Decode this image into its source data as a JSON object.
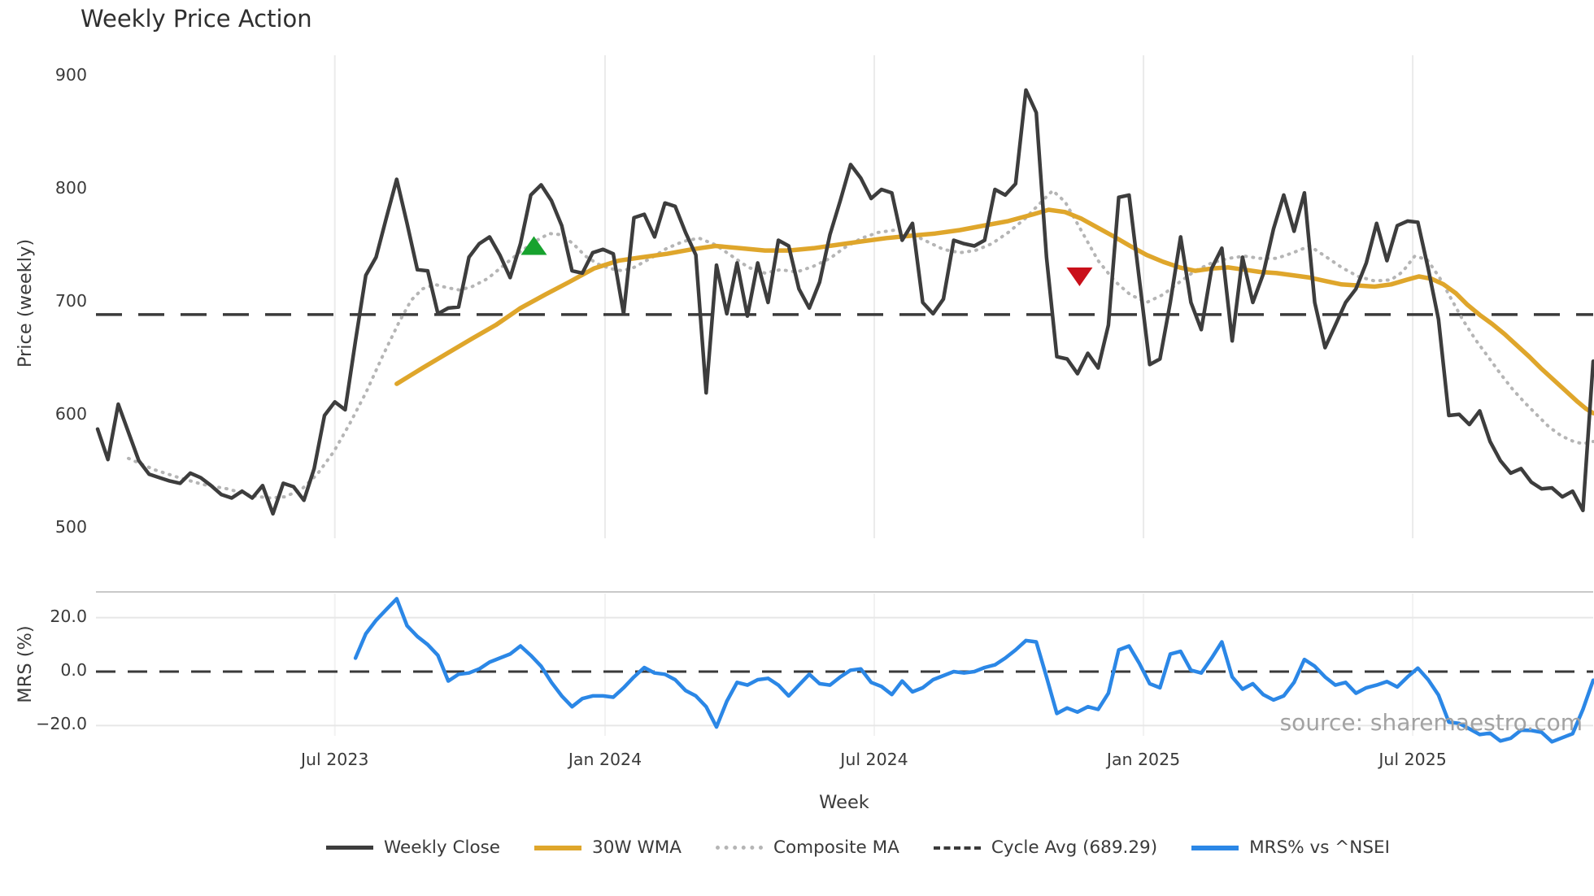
{
  "title": "Weekly Price Action",
  "watermark": "source: sharemaestro.com",
  "xlabel": "Week",
  "main_axis": {
    "ylabel": "Price (weekly)",
    "yticks": [
      {
        "label": "900",
        "value": 900
      },
      {
        "label": "800",
        "value": 800
      },
      {
        "label": "700",
        "value": 700
      },
      {
        "label": "600",
        "value": 600
      },
      {
        "label": "500",
        "value": 500
      }
    ]
  },
  "mrs_axis": {
    "ylabel": "MRS (%)",
    "yticks": [
      {
        "label": "20.0",
        "value": 20
      },
      {
        "label": "0.0",
        "value": 0
      },
      {
        "label": "−20.0",
        "value": -20
      }
    ]
  },
  "xticks": [
    {
      "label": "Jul 2023",
      "week": 23.0
    },
    {
      "label": "Jan 2024",
      "week": 49.2
    },
    {
      "label": "Jul 2024",
      "week": 75.3
    },
    {
      "label": "Jan 2025",
      "week": 101.4
    },
    {
      "label": "Jul 2025",
      "week": 127.5
    }
  ],
  "legend": {
    "items": [
      {
        "label": "Weekly Close",
        "style": "solid",
        "color": "#3d3d3d"
      },
      {
        "label": "30W WMA",
        "style": "solid",
        "color": "#dfa62b"
      },
      {
        "label": "Composite MA",
        "style": "dotted",
        "color": "#b5b5b5"
      },
      {
        "label": "Cycle Avg (689.29)",
        "style": "dashed",
        "color": "#3a3a3a"
      },
      {
        "label": "MRS% vs ^NSEI",
        "style": "solid",
        "color": "#2b87e6"
      }
    ]
  },
  "colors": {
    "weekly_close": "#3d3d3d",
    "wma": "#dfa62b",
    "composite": "#b5b5b5",
    "cycle_avg": "#3a3a3a",
    "mrs": "#2b87e6",
    "buy_marker": "#17a22e",
    "sell_marker": "#c9101a",
    "gridline": "#ebebeb",
    "panel_border": "#c9c9c9",
    "mrs_gridline": "#e7e7e7"
  },
  "chart_data": [
    {
      "type": "line",
      "panel": "price",
      "title": "Weekly Price Action",
      "xlabel": "Week",
      "ylabel": "Price (weekly)",
      "ylim": [
        465,
        920
      ],
      "yticks": [
        500,
        600,
        700,
        800,
        900
      ],
      "x_unit": "week_index",
      "x_tick_weeks": [
        23.0,
        49.2,
        75.3,
        101.4,
        127.5
      ],
      "x_tick_labels": [
        "Jul 2023",
        "Jan 2024",
        "Jul 2024",
        "Jan 2025",
        "Jul 2025"
      ],
      "cycle_avg": 689.29,
      "series": [
        {
          "name": "Weekly Close",
          "style": "solid",
          "start_week": 0,
          "values": [
            588,
            561,
            610,
            585,
            560,
            548,
            545,
            542,
            540,
            549,
            545,
            538,
            530,
            527,
            533,
            527,
            538,
            513,
            540,
            537,
            525,
            553,
            600,
            612,
            605,
            666,
            724,
            740,
            775,
            809,
            770,
            729,
            728,
            690,
            695,
            696,
            740,
            752,
            758,
            742,
            722,
            752,
            795,
            804,
            790,
            768,
            728,
            726,
            744,
            747,
            743,
            690,
            775,
            778,
            758,
            788,
            785,
            762,
            742,
            620,
            733,
            690,
            735,
            688,
            735,
            700,
            755,
            750,
            712,
            695,
            718,
            760,
            790,
            822,
            810,
            792,
            800,
            797,
            755,
            770,
            700,
            690,
            703,
            755,
            752,
            750,
            755,
            800,
            795,
            805,
            888,
            868,
            740,
            652,
            650,
            637,
            655,
            642,
            680,
            793,
            795,
            720,
            645,
            650,
            700,
            758,
            700,
            676,
            730,
            748,
            666,
            740,
            700,
            725,
            765,
            795,
            763,
            797,
            700,
            660,
            680,
            700,
            712,
            735,
            770,
            737,
            768,
            772,
            771,
            730,
            685,
            600,
            601,
            592,
            604,
            577,
            560,
            549,
            553,
            541,
            535,
            536,
            528,
            533,
            516,
            648
          ]
        },
        {
          "name": "30W WMA",
          "style": "solid",
          "points": [
            [
              29.0,
              628
            ],
            [
              31.5,
              642
            ],
            [
              33.9,
              655
            ],
            [
              36.3,
              668
            ],
            [
              38.6,
              680
            ],
            [
              41.0,
              695
            ],
            [
              43.4,
              707
            ],
            [
              45.7,
              718
            ],
            [
              48.1,
              730
            ],
            [
              50.5,
              737
            ],
            [
              52.8,
              740
            ],
            [
              55.2,
              743
            ],
            [
              57.6,
              747
            ],
            [
              59.9,
              750
            ],
            [
              62.3,
              748
            ],
            [
              64.7,
              746
            ],
            [
              67.0,
              746
            ],
            [
              69.4,
              748
            ],
            [
              71.7,
              751
            ],
            [
              74.1,
              754
            ],
            [
              76.5,
              757
            ],
            [
              78.8,
              759
            ],
            [
              81.2,
              761
            ],
            [
              83.6,
              764
            ],
            [
              85.9,
              768
            ],
            [
              88.3,
              772
            ],
            [
              90.7,
              778
            ],
            [
              92.2,
              782
            ],
            [
              93.8,
              780
            ],
            [
              95.4,
              774
            ],
            [
              97.0,
              766
            ],
            [
              98.6,
              758
            ],
            [
              100.1,
              750
            ],
            [
              101.7,
              742
            ],
            [
              103.3,
              736
            ],
            [
              104.9,
              731
            ],
            [
              106.4,
              728
            ],
            [
              108.0,
              730
            ],
            [
              109.6,
              731
            ],
            [
              111.2,
              729
            ],
            [
              112.7,
              727
            ],
            [
              114.3,
              726
            ],
            [
              115.9,
              724
            ],
            [
              117.5,
              722
            ],
            [
              119.0,
              719
            ],
            [
              120.6,
              716
            ],
            [
              122.2,
              715
            ],
            [
              123.8,
              714
            ],
            [
              125.4,
              716
            ],
            [
              126.9,
              720
            ],
            [
              128.1,
              723
            ],
            [
              129.3,
              721
            ],
            [
              130.5,
              716
            ],
            [
              131.7,
              708
            ],
            [
              132.8,
              698
            ],
            [
              134.0,
              689
            ],
            [
              135.2,
              681
            ],
            [
              136.4,
              672
            ],
            [
              137.6,
              662
            ],
            [
              138.8,
              652
            ],
            [
              139.9,
              642
            ],
            [
              141.1,
              632
            ],
            [
              142.3,
              622
            ],
            [
              143.5,
              612
            ],
            [
              144.3,
              606
            ],
            [
              145.0,
              602
            ]
          ]
        },
        {
          "name": "Composite MA",
          "style": "dotted",
          "points": [
            [
              3.0,
              562
            ],
            [
              5.5,
              552
            ],
            [
              7.9,
              545
            ],
            [
              10.2,
              539
            ],
            [
              12.6,
              535
            ],
            [
              15.0,
              529
            ],
            [
              16.6,
              527
            ],
            [
              18.1,
              528
            ],
            [
              19.7,
              534
            ],
            [
              21.3,
              548
            ],
            [
              22.9,
              568
            ],
            [
              24.4,
              592
            ],
            [
              26.0,
              620
            ],
            [
              27.6,
              652
            ],
            [
              29.2,
              682
            ],
            [
              30.4,
              702
            ],
            [
              31.5,
              712
            ],
            [
              32.7,
              716
            ],
            [
              33.9,
              713
            ],
            [
              35.1,
              711
            ],
            [
              36.3,
              714
            ],
            [
              37.8,
              721
            ],
            [
              39.4,
              733
            ],
            [
              41.0,
              745
            ],
            [
              42.6,
              755
            ],
            [
              43.8,
              761
            ],
            [
              44.9,
              760
            ],
            [
              46.1,
              752
            ],
            [
              47.3,
              741
            ],
            [
              48.5,
              734
            ],
            [
              49.7,
              730
            ],
            [
              50.9,
              728
            ],
            [
              52.0,
              731
            ],
            [
              53.6,
              739
            ],
            [
              55.2,
              748
            ],
            [
              56.8,
              754
            ],
            [
              58.3,
              757
            ],
            [
              59.9,
              751
            ],
            [
              61.5,
              741
            ],
            [
              63.1,
              731
            ],
            [
              64.7,
              726
            ],
            [
              66.2,
              729
            ],
            [
              67.8,
              727
            ],
            [
              69.4,
              732
            ],
            [
              71.0,
              739
            ],
            [
              72.5,
              749
            ],
            [
              74.1,
              757
            ],
            [
              75.7,
              762
            ],
            [
              77.3,
              764
            ],
            [
              78.8,
              761
            ],
            [
              80.4,
              754
            ],
            [
              82.0,
              747
            ],
            [
              83.6,
              744
            ],
            [
              85.1,
              746
            ],
            [
              86.7,
              752
            ],
            [
              88.3,
              762
            ],
            [
              89.9,
              774
            ],
            [
              91.5,
              789
            ],
            [
              92.6,
              799
            ],
            [
              93.8,
              789
            ],
            [
              95.4,
              763
            ],
            [
              97.0,
              737
            ],
            [
              98.6,
              719
            ],
            [
              100.1,
              707
            ],
            [
              101.7,
              700
            ],
            [
              103.3,
              707
            ],
            [
              104.9,
              718
            ],
            [
              106.4,
              728
            ],
            [
              108.0,
              735
            ],
            [
              109.6,
              739
            ],
            [
              111.2,
              741
            ],
            [
              112.7,
              739
            ],
            [
              114.3,
              739
            ],
            [
              115.9,
              744
            ],
            [
              117.5,
              750
            ],
            [
              119.0,
              741
            ],
            [
              120.6,
              731
            ],
            [
              122.2,
              723
            ],
            [
              123.8,
              719
            ],
            [
              125.4,
              720
            ],
            [
              126.5,
              727
            ],
            [
              127.7,
              741
            ],
            [
              128.9,
              738
            ],
            [
              130.1,
              722
            ],
            [
              131.3,
              702
            ],
            [
              132.4,
              684
            ],
            [
              133.6,
              667
            ],
            [
              134.8,
              652
            ],
            [
              136.0,
              637
            ],
            [
              137.2,
              623
            ],
            [
              138.4,
              611
            ],
            [
              139.6,
              600
            ],
            [
              140.7,
              590
            ],
            [
              141.9,
              582
            ],
            [
              143.1,
              577
            ],
            [
              144.0,
              575
            ],
            [
              145.0,
              577
            ]
          ]
        },
        {
          "name": "Cycle Avg (689.29)",
          "style": "dashed-horizontal",
          "value": 689.29
        }
      ],
      "markers": [
        {
          "shape": "triangle-up",
          "name": "buy-signal",
          "week": 42.3,
          "price": 750
        },
        {
          "shape": "triangle-down",
          "name": "sell-signal",
          "week": 95.2,
          "price": 723
        }
      ]
    },
    {
      "type": "line",
      "panel": "mrs",
      "ylabel": "MRS (%)",
      "ylim": [
        -29.5,
        29.5
      ],
      "yticks": [
        -20,
        0,
        20
      ],
      "zero_line": "dashed",
      "series": [
        {
          "name": "MRS% vs ^NSEI",
          "style": "solid",
          "start_week": 25,
          "values": [
            5,
            14,
            19,
            23,
            27,
            17,
            13,
            10,
            6,
            -3.5,
            -1,
            -0.5,
            1,
            3.5,
            5,
            6.5,
            9.5,
            6,
            2,
            -4,
            -9,
            -13,
            -10,
            -9,
            -9,
            -9.5,
            -6,
            -2,
            1.5,
            -0.5,
            -1,
            -3,
            -7,
            -9,
            -13,
            -20.5,
            -11,
            -4,
            -5,
            -3,
            -2.5,
            -5,
            -9,
            -5,
            -1,
            -4.5,
            -5,
            -2,
            0.5,
            1,
            -4,
            -5.5,
            -8.5,
            -3.5,
            -7.5,
            -6,
            -3,
            -1.5,
            0,
            -0.5,
            0,
            1.5,
            2.5,
            5,
            8,
            11.5,
            11,
            -2,
            -15.5,
            -13.5,
            -15,
            -13,
            -14,
            -8,
            8,
            9.5,
            3,
            -4.5,
            -6,
            6.5,
            7.5,
            0.5,
            -0.5,
            5,
            11,
            -2,
            -6.5,
            -4.5,
            -8.5,
            -10.5,
            -9,
            -4,
            4.5,
            2,
            -2,
            -5,
            -4,
            -8,
            -6,
            -5,
            -3.7,
            -5.7,
            -2,
            1.3,
            -3,
            -8.7,
            -18.7,
            -19.2,
            -21.2,
            -23.3,
            -22.8,
            -25.7,
            -24.7,
            -21.7,
            -21.8,
            -22.5,
            -26,
            -24.5,
            -23,
            -14,
            -3.2
          ]
        }
      ]
    }
  ]
}
